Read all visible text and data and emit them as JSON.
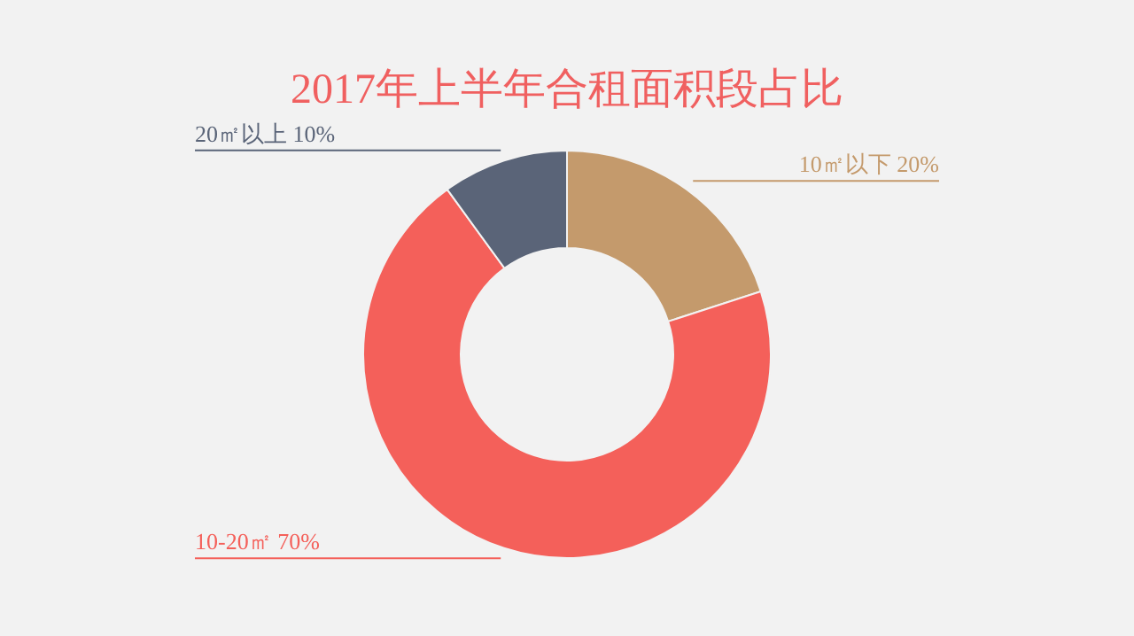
{
  "chart_data": {
    "type": "donut",
    "title": "2017年上半年合租面积段占比",
    "categories": [
      "10㎡以下",
      "10-20㎡",
      "20㎡以上"
    ],
    "values": [
      20,
      70,
      10
    ],
    "value_labels": [
      "20%",
      "70%",
      "10%"
    ],
    "colors": [
      "#c49a6c",
      "#f4605a",
      "#5a6478"
    ]
  }
}
